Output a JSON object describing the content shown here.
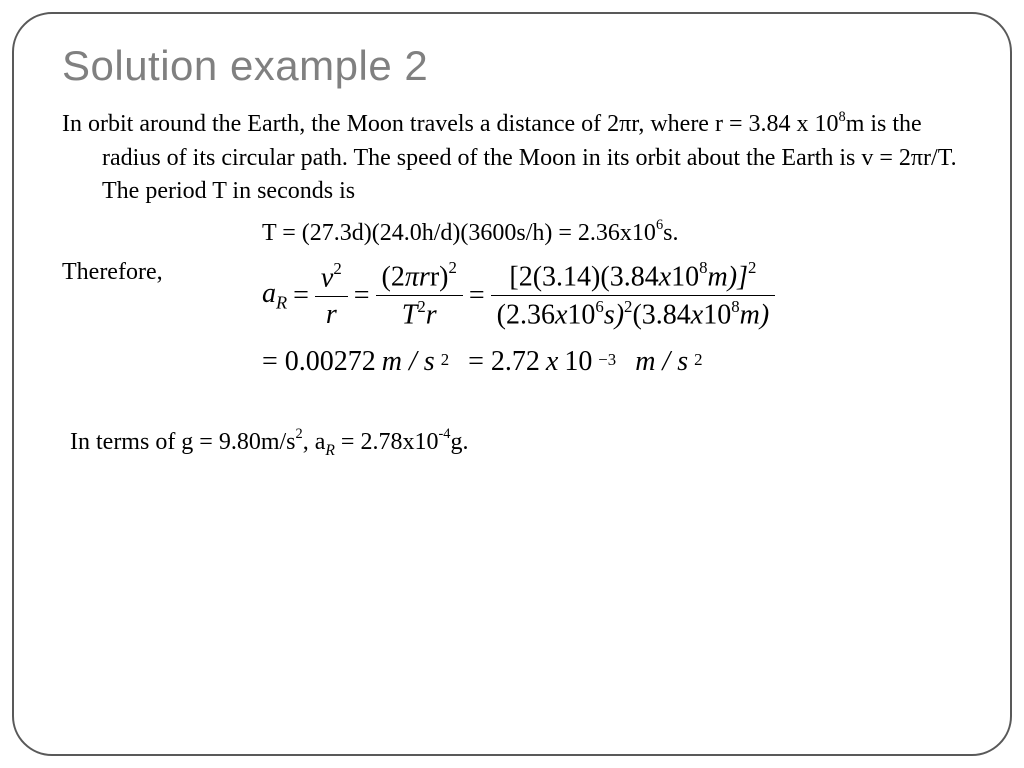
{
  "slide": {
    "title": "Solution example 2",
    "para1_a": "In orbit around the Earth, the Moon travels a distance of 2",
    "pi": "π",
    "para1_b": "r, where r = 3.84 x 10",
    "exp8": "8",
    "para1_c": "m is the radius of its circular path.  The speed of the Moon in its orbit about the Earth is v = 2",
    "para1_d": "r/T.  The period T in seconds is",
    "period_a": "T = (27.3d)(24.0h/d)(3600s/h) = 2.36x10",
    "exp6": "6",
    "period_b": "s.",
    "therefore": "Therefore,",
    "eq": {
      "aR_a": "a",
      "aR_R": "R",
      "eq": "=",
      "v2": "v",
      "sq": "2",
      "r": "r",
      "twoPiR_a": "(2",
      "twoPiR_b": "r)",
      "T2r_a": "T",
      "T2r_b": "r",
      "num3_a": "[2(3.14)(3.84",
      "x": "x",
      "num3_b": "10",
      "num3_c": "m)]",
      "den3_a": "(2.36",
      "den3_b": "10",
      "den3_c": "s)",
      "den3_d": "(3.84",
      "den3_e": "10",
      "den3_f": "m)",
      "line2_a": "= 0.00272",
      "line2_b": "m / s",
      "line2_c": "= 2.72",
      "line2_d": "10",
      "neg3": "−3",
      "line2_e": "m / s"
    },
    "concl_a": "In terms of g = 9.80m/s",
    "concl_b": ", a",
    "concl_R": "R",
    "concl_c": " = 2.78x10",
    "neg4": "-4",
    "concl_d": "g."
  },
  "style": {
    "title_color": "#808080",
    "title_fontsize": 42,
    "body_fontsize": 24,
    "eq_fontsize": 28,
    "border_color": "#595959",
    "border_radius": 40,
    "bg": "#ffffff",
    "text_color": "#000000",
    "serif_font": "Constantia",
    "eq_font": "Times New Roman"
  }
}
